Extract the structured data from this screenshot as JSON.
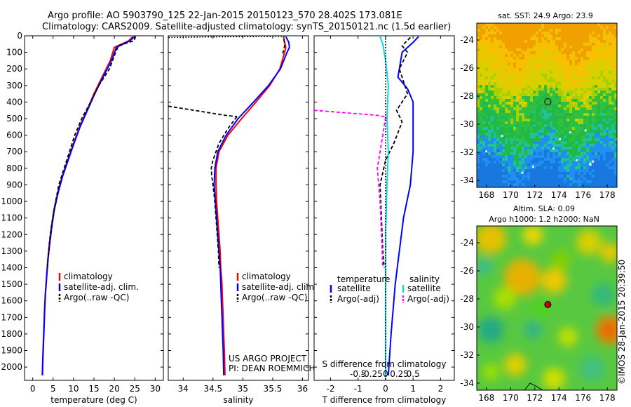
{
  "header": {
    "line1": "Argo profile: AO 5903790_125 22-Jan-2015 20150123_570 28.402S 173.081E",
    "line2": "Climatology: CARS2009. Satellite-adjusted climatology: synTS_20150121.nc (1.5d earlier)"
  },
  "credits": {
    "project": "US ARGO PROJECT",
    "pi": "PI: DEAN ROEMMICH",
    "stamp": "©IMOS 28-Jan-2015 20:39:50"
  },
  "chart_data": [
    {
      "type": "line",
      "id": "temperature",
      "xlabel": "temperature (deg C)",
      "ylabel": "",
      "xlim": [
        -2,
        32
      ],
      "ylim": [
        2080,
        0
      ],
      "x_ticks": [
        0,
        5,
        10,
        15,
        20,
        25,
        30
      ],
      "y_ticks": [
        0,
        100,
        200,
        300,
        400,
        500,
        600,
        700,
        800,
        900,
        1000,
        1100,
        1200,
        1300,
        1400,
        1500,
        1600,
        1700,
        1800,
        1900,
        2000
      ],
      "legend": [
        "climatology",
        "satellite-adj. clim.",
        "Argo(..raw -QC)"
      ],
      "series": [
        {
          "name": "climatology",
          "color": "#ff0000",
          "style": "solid",
          "points": [
            [
              24.5,
              5
            ],
            [
              23.5,
              30
            ],
            [
              20,
              70
            ],
            [
              19,
              150
            ],
            [
              17,
              250
            ],
            [
              15,
              350
            ],
            [
              13.3,
              450
            ],
            [
              11.5,
              550
            ],
            [
              10,
              650
            ],
            [
              8.6,
              750
            ],
            [
              7.2,
              850
            ],
            [
              6.1,
              950
            ],
            [
              5.2,
              1050
            ],
            [
              4.6,
              1150
            ],
            [
              4.1,
              1250
            ],
            [
              3.7,
              1350
            ],
            [
              3.4,
              1450
            ],
            [
              3.1,
              1550
            ],
            [
              2.9,
              1650
            ],
            [
              2.75,
              1750
            ],
            [
              2.6,
              1850
            ],
            [
              2.45,
              1950
            ],
            [
              2.35,
              2050
            ]
          ]
        },
        {
          "name": "satellite-adj. clim.",
          "color": "#0000ff",
          "style": "solid",
          "points": [
            [
              25,
              5
            ],
            [
              23.8,
              30
            ],
            [
              20.5,
              70
            ],
            [
              19.3,
              150
            ],
            [
              17.2,
              250
            ],
            [
              15.2,
              350
            ],
            [
              13.4,
              450
            ],
            [
              11.6,
              550
            ],
            [
              10.1,
              650
            ],
            [
              8.7,
              750
            ],
            [
              7.3,
              850
            ],
            [
              6.2,
              950
            ],
            [
              5.3,
              1050
            ],
            [
              4.7,
              1150
            ],
            [
              4.2,
              1250
            ],
            [
              3.75,
              1350
            ],
            [
              3.45,
              1450
            ],
            [
              3.15,
              1550
            ],
            [
              2.95,
              1650
            ],
            [
              2.8,
              1750
            ],
            [
              2.65,
              1850
            ],
            [
              2.5,
              1950
            ],
            [
              2.4,
              2050
            ]
          ]
        },
        {
          "name": "Argo(..raw -QC)",
          "color": "#000000",
          "style": "dash",
          "points": [
            [
              25.2,
              5
            ],
            [
              24.8,
              30
            ],
            [
              21,
              60
            ],
            [
              20.3,
              100
            ],
            [
              18.8,
              200
            ],
            [
              16.2,
              300
            ],
            [
              14.2,
              400
            ],
            [
              12,
              500
            ],
            [
              10.3,
              600
            ],
            [
              9,
              700
            ],
            [
              7.7,
              800
            ],
            [
              6.4,
              900
            ],
            [
              5.6,
              1000
            ],
            [
              4.9,
              1100
            ],
            [
              4.3,
              1200
            ],
            [
              3.9,
              1300
            ],
            [
              3.6,
              1400
            ]
          ]
        }
      ]
    },
    {
      "type": "line",
      "id": "salinity",
      "xlabel": "salinity",
      "ylabel": "",
      "xlim": [
        33.75,
        36.1
      ],
      "ylim": [
        2080,
        0
      ],
      "x_ticks": [
        34,
        34.5,
        35,
        35.5,
        36
      ],
      "legend": [
        "climatology",
        "satellite-adj. clim.",
        "Argo(..raw -QC)"
      ],
      "series": [
        {
          "name": "climatology",
          "color": "#ff0000",
          "style": "solid",
          "points": [
            [
              35.68,
              5
            ],
            [
              35.7,
              40
            ],
            [
              35.72,
              70
            ],
            [
              35.7,
              100
            ],
            [
              35.62,
              200
            ],
            [
              35.45,
              300
            ],
            [
              35.22,
              400
            ],
            [
              34.98,
              500
            ],
            [
              34.75,
              600
            ],
            [
              34.6,
              700
            ],
            [
              34.55,
              800
            ],
            [
              34.55,
              900
            ],
            [
              34.56,
              1000
            ],
            [
              34.58,
              1100
            ],
            [
              34.6,
              1200
            ],
            [
              34.62,
              1300
            ],
            [
              34.63,
              1400
            ],
            [
              34.65,
              1500
            ],
            [
              34.66,
              1600
            ],
            [
              34.67,
              1700
            ],
            [
              34.68,
              1800
            ],
            [
              34.69,
              1900
            ],
            [
              34.7,
              2050
            ]
          ]
        },
        {
          "name": "satellite-adj. clim.",
          "color": "#0000ff",
          "style": "solid",
          "points": [
            [
              35.72,
              5
            ],
            [
              35.77,
              40
            ],
            [
              35.78,
              70
            ],
            [
              35.74,
              100
            ],
            [
              35.63,
              200
            ],
            [
              35.43,
              300
            ],
            [
              35.18,
              400
            ],
            [
              34.92,
              500
            ],
            [
              34.72,
              600
            ],
            [
              34.58,
              700
            ],
            [
              34.53,
              800
            ],
            [
              34.52,
              900
            ],
            [
              34.54,
              1000
            ],
            [
              34.56,
              1100
            ],
            [
              34.58,
              1200
            ],
            [
              34.6,
              1300
            ],
            [
              34.62,
              1400
            ],
            [
              34.63,
              1500
            ],
            [
              34.64,
              1600
            ],
            [
              34.65,
              1700
            ],
            [
              34.66,
              1800
            ],
            [
              34.67,
              1900
            ],
            [
              34.68,
              2050
            ]
          ]
        },
        {
          "name": "Argo(..raw -QC) surface",
          "color": "#000000",
          "style": "dot",
          "points": [
            [
              35.7,
              3
            ],
            [
              34.6,
              6
            ],
            [
              33.75,
              10
            ]
          ]
        },
        {
          "name": "Argo(..raw -QC) upper",
          "color": "#000000",
          "style": "dash",
          "points": [
            [
              35.69,
              20
            ],
            [
              35.7,
              60
            ],
            [
              35.66,
              120
            ]
          ]
        },
        {
          "name": "Argo(..raw -QC) jump",
          "color": "#000000",
          "style": "dash",
          "points": [
            [
              33.75,
              425
            ],
            [
              34.7,
              480
            ],
            [
              34.9,
              488
            ]
          ]
        },
        {
          "name": "Argo(..raw -QC)",
          "color": "#000000",
          "style": "dash",
          "points": [
            [
              34.9,
              488
            ],
            [
              34.75,
              560
            ],
            [
              34.6,
              650
            ],
            [
              34.5,
              750
            ],
            [
              34.47,
              800
            ],
            [
              34.48,
              850
            ],
            [
              34.5,
              900
            ],
            [
              34.53,
              1000
            ],
            [
              34.55,
              1100
            ],
            [
              34.57,
              1200
            ],
            [
              34.59,
              1300
            ],
            [
              34.6,
              1400
            ]
          ]
        }
      ]
    },
    {
      "type": "line",
      "id": "difference",
      "xlabel": "T difference from climatology",
      "xlabel_top": "S difference from climatology",
      "ylabel": "",
      "xlim": [
        -2.6,
        2.5
      ],
      "ylim": [
        2080,
        0
      ],
      "x_ticks": [
        -2,
        -1,
        0,
        1,
        2
      ],
      "x_ticks_top": [
        -0.5,
        -0.25,
        0,
        0.25,
        0.5
      ],
      "legend_left_title": "temperature",
      "legend_right_title": "salinity",
      "legend_left": [
        "satellite",
        "Argo(-adj)"
      ],
      "legend_right": [
        "satellite",
        "Argo(-adj)"
      ],
      "series": [
        {
          "name": "T satellite",
          "color": "#0000ff",
          "style": "solid",
          "points": [
            [
              1.2,
              5
            ],
            [
              1.0,
              40
            ],
            [
              0.6,
              100
            ],
            [
              0.5,
              200
            ],
            [
              0.45,
              250
            ],
            [
              0.8,
              320
            ],
            [
              1.0,
              400
            ],
            [
              1.0,
              500
            ],
            [
              1.0,
              700
            ],
            [
              0.9,
              900
            ],
            [
              0.65,
              1100
            ],
            [
              0.5,
              1300
            ],
            [
              0.35,
              1500
            ],
            [
              0.2,
              1800
            ],
            [
              0.1,
              2050
            ]
          ]
        },
        {
          "name": "T Argo(-adj)",
          "color": "#000000",
          "style": "dash",
          "points": [
            [
              0.9,
              10
            ],
            [
              0.6,
              60
            ],
            [
              0.8,
              100
            ],
            [
              0.5,
              200
            ],
            [
              0.8,
              350
            ],
            [
              0.4,
              450
            ],
            [
              0.6,
              520
            ],
            [
              0.3,
              650
            ],
            [
              0.0,
              750
            ],
            [
              -0.2,
              900
            ],
            [
              -0.15,
              1100
            ],
            [
              -0.1,
              1300
            ],
            [
              -0.05,
              1400
            ]
          ]
        },
        {
          "name": "S satellite",
          "color": "#00e0e0",
          "style": "solid",
          "points": [
            [
              -0.2,
              5
            ],
            [
              -0.1,
              50
            ],
            [
              0.0,
              150
            ],
            [
              0.1,
              300
            ],
            [
              0.05,
              500
            ],
            [
              0.1,
              700
            ],
            [
              0.05,
              900
            ],
            [
              0.0,
              1200
            ],
            [
              0.0,
              1600
            ],
            [
              0.0,
              2050
            ]
          ]
        },
        {
          "name": "S Argo(-adj) jump",
          "color": "#ff00ff",
          "style": "dash",
          "points": [
            [
              -2.6,
              450
            ],
            [
              -0.3,
              480
            ],
            [
              0.0,
              490
            ]
          ]
        },
        {
          "name": "S Argo(-adj)",
          "color": "#ff00ff",
          "style": "dash",
          "points": [
            [
              0.0,
              490
            ],
            [
              -0.1,
              600
            ],
            [
              -0.2,
              700
            ],
            [
              -0.3,
              800
            ],
            [
              -0.25,
              900
            ],
            [
              -0.2,
              1000
            ],
            [
              -0.15,
              1200
            ],
            [
              -0.1,
              1400
            ]
          ]
        },
        {
          "name": "zero line",
          "color": "#000000",
          "style": "dot",
          "points": [
            [
              0,
              0
            ],
            [
              0,
              2080
            ]
          ]
        }
      ]
    },
    {
      "type": "heatmap",
      "id": "sst_map",
      "title": "sat. SST: 24.9 Argo: 23.9",
      "xlim": [
        167.2,
        178.8
      ],
      "ylim": [
        -34.5,
        -22.8
      ],
      "x_ticks": [
        168,
        170,
        172,
        174,
        176,
        178
      ],
      "y_ticks": [
        -24,
        -26,
        -28,
        -30,
        -32,
        -34
      ],
      "marker": {
        "lon": 173.08,
        "lat": -28.4
      }
    },
    {
      "type": "heatmap",
      "id": "sla_map",
      "title_line1": "Altim. SLA: 0.09",
      "title_line2": "Argo h1000: 1.2 h2000: NaN",
      "xlim": [
        167.2,
        178.8
      ],
      "ylim": [
        -34.5,
        -22.8
      ],
      "x_ticks": [
        168,
        170,
        172,
        174,
        176,
        178
      ],
      "y_ticks": [
        -24,
        -26,
        -28,
        -30,
        -32,
        -34
      ],
      "marker": {
        "lon": 173.08,
        "lat": -28.4
      }
    }
  ]
}
